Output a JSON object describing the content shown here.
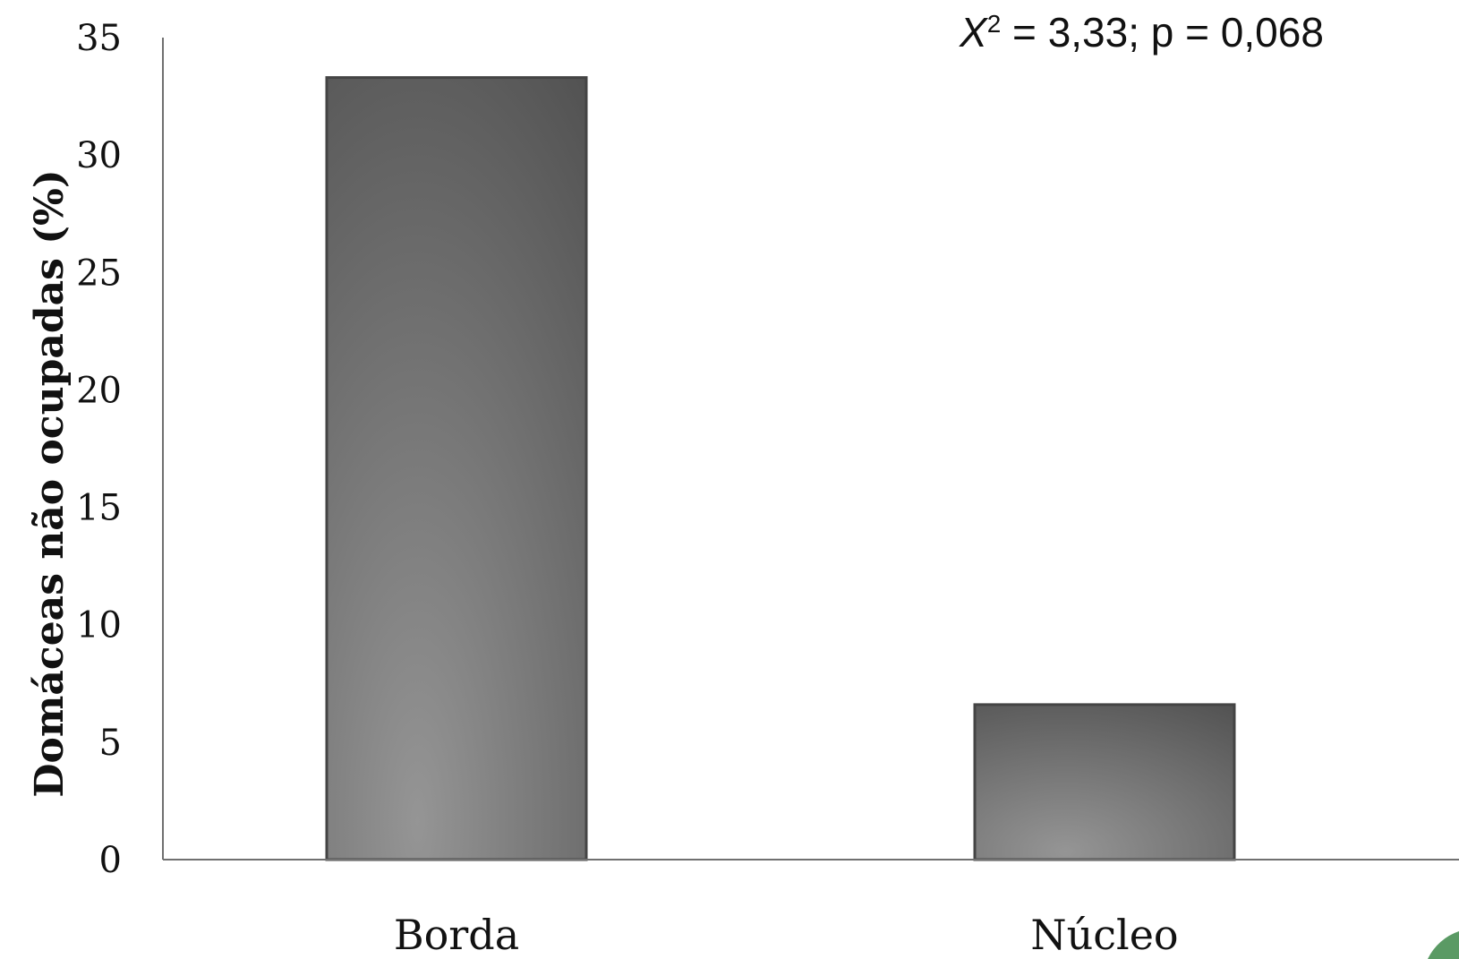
{
  "chart_data": {
    "type": "bar",
    "categories": [
      "Borda",
      "Núcleo"
    ],
    "values": [
      33.3,
      6.6
    ],
    "ylabel": "Domáceas não ocupadas (%)",
    "xlabel": "",
    "ylim": [
      0,
      35
    ],
    "yticks": [
      0,
      5,
      10,
      15,
      20,
      25,
      30,
      35
    ],
    "grid": false,
    "annotation": {
      "var": "X",
      "sup": "2",
      "rest": " = 3,33; p = 0,068"
    },
    "colors": {
      "bar_dark": "#4f4f4f",
      "bar_light": "#959595",
      "axis": "#707070",
      "corner_accent": "#5a9a64"
    }
  }
}
